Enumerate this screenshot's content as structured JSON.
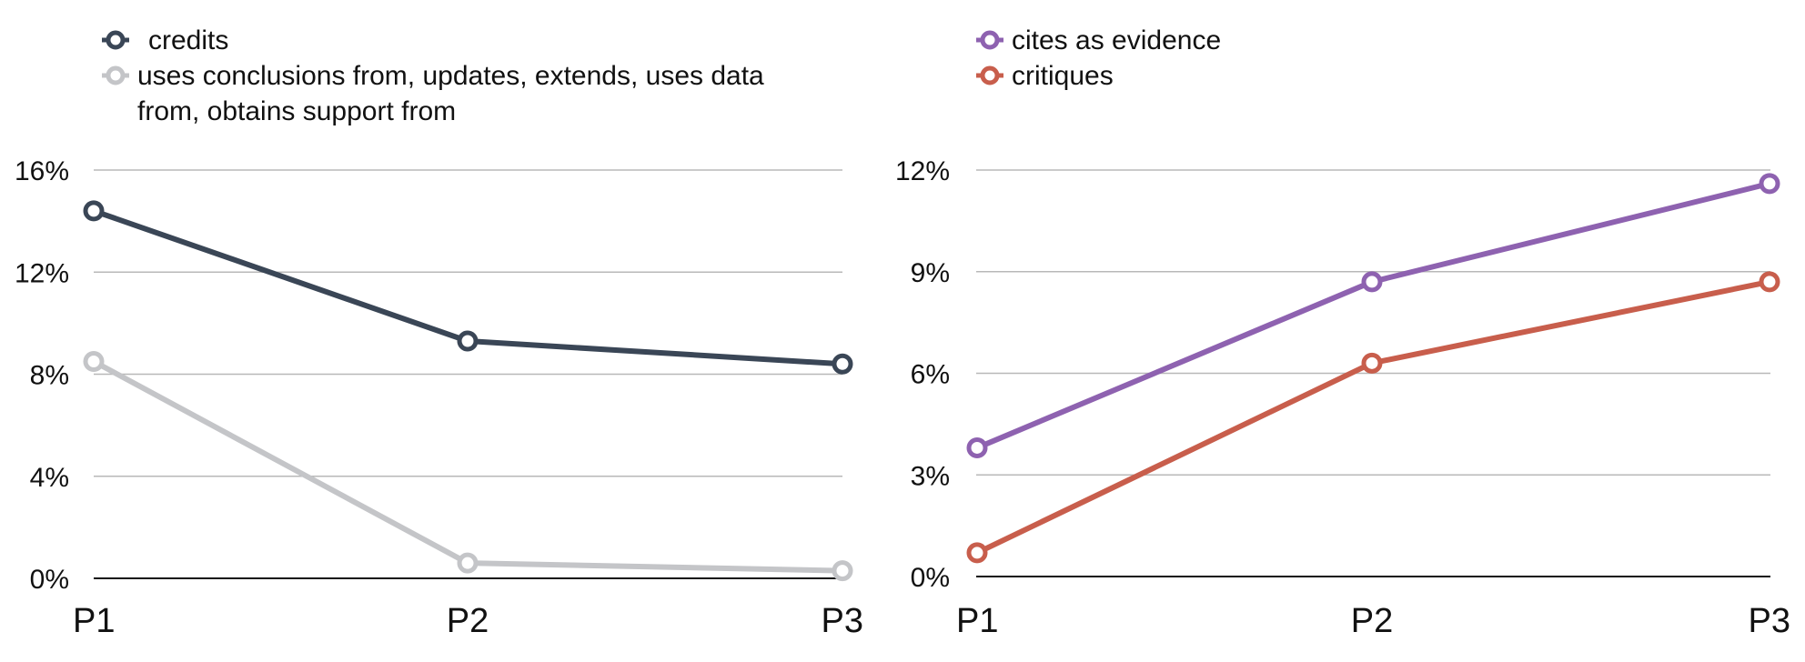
{
  "chart_data": [
    {
      "type": "line",
      "categories": [
        "P1",
        "P2",
        "P3"
      ],
      "ylim": [
        0,
        16
      ],
      "yticks": [
        "0%",
        "4%",
        "8%",
        "12%",
        "16%"
      ],
      "ytick_values": [
        0,
        4,
        8,
        12,
        16
      ],
      "grid": true,
      "legend_position": "top-left",
      "series": [
        {
          "name": "credits",
          "color": "#3a4656",
          "values": [
            14.4,
            9.3,
            8.4
          ]
        },
        {
          "name": "uses conclusions from, updates, extends, uses data from, obtains support from",
          "name_lines": [
            "uses conclusions from, updates, extends, uses data",
            "from, obtains support from"
          ],
          "color": "#c4c5c8",
          "values": [
            8.5,
            0.6,
            0.3
          ]
        }
      ]
    },
    {
      "type": "line",
      "categories": [
        "P1",
        "P2",
        "P3"
      ],
      "ylim": [
        0,
        12
      ],
      "yticks": [
        "0%",
        "3%",
        "6%",
        "9%",
        "12%"
      ],
      "ytick_values": [
        0,
        3,
        6,
        9,
        12
      ],
      "grid": true,
      "legend_position": "top-left",
      "series": [
        {
          "name": "cites as evidence",
          "color": "#8e62b0",
          "values": [
            3.8,
            8.7,
            11.6
          ]
        },
        {
          "name": "critiques",
          "color": "#c85e4c",
          "values": [
            0.7,
            6.3,
            8.7
          ]
        }
      ]
    }
  ]
}
